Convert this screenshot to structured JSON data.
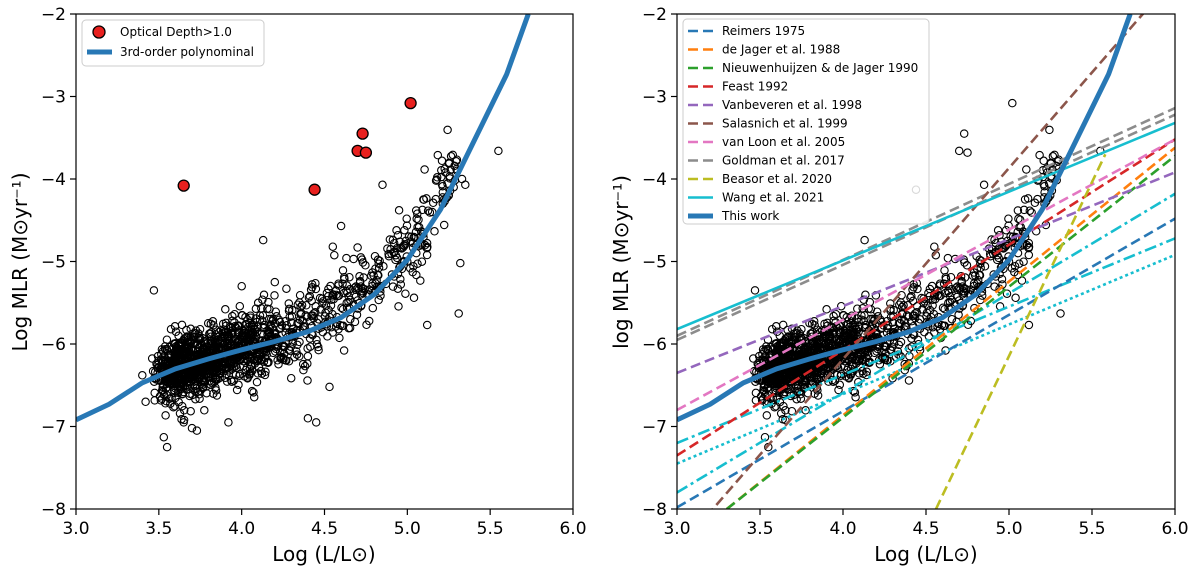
{
  "chart_data": [
    {
      "type": "scatter",
      "panel": "left",
      "xlabel": "Log (L/L⊙)",
      "ylabel": "Log MLR (M⊙yr⁻¹)",
      "xlim": [
        3.0,
        6.0
      ],
      "ylim": [
        -8,
        -2
      ],
      "xticks": [
        "3.0",
        "3.5",
        "4.0",
        "4.5",
        "5.0",
        "5.5",
        "6.0"
      ],
      "yticks": [
        "−2",
        "−3",
        "−4",
        "−5",
        "−6",
        "−7",
        "−8"
      ],
      "legend": [
        {
          "label": "Optical Depth>1.0",
          "color": "#e8201e",
          "kind": "marker"
        },
        {
          "label": "3rd-order polynominal",
          "color": "#2878b5",
          "kind": "line"
        }
      ],
      "legend_position": "upper-left",
      "optical_depth_points": [
        [
          3.65,
          -4.08
        ],
        [
          4.44,
          -4.13
        ],
        [
          4.7,
          -3.66
        ],
        [
          4.73,
          -3.45
        ],
        [
          4.75,
          -3.68
        ],
        [
          5.02,
          -3.08
        ]
      ],
      "outlier_points": [
        [
          3.4,
          -6.38
        ],
        [
          3.42,
          -6.7
        ],
        [
          3.47,
          -5.35
        ],
        [
          3.53,
          -7.13
        ],
        [
          3.55,
          -7.25
        ],
        [
          3.65,
          -6.95
        ],
        [
          3.7,
          -7.02
        ],
        [
          3.73,
          -7.05
        ],
        [
          3.92,
          -6.95
        ],
        [
          4.0,
          -5.3
        ],
        [
          4.1,
          -5.5
        ],
        [
          4.13,
          -4.74
        ],
        [
          4.2,
          -5.25
        ],
        [
          4.27,
          -5.33
        ],
        [
          4.4,
          -6.9
        ],
        [
          4.45,
          -6.95
        ],
        [
          4.48,
          -5.8
        ],
        [
          4.53,
          -6.52
        ],
        [
          4.55,
          -4.82
        ],
        [
          4.6,
          -4.57
        ],
        [
          4.7,
          -4.83
        ],
        [
          4.72,
          -4.95
        ],
        [
          4.85,
          -4.07
        ],
        [
          4.95,
          -4.38
        ],
        [
          5.06,
          -4.42
        ],
        [
          5.1,
          -4.25
        ],
        [
          5.12,
          -5.77
        ],
        [
          5.15,
          -4.4
        ],
        [
          5.18,
          -3.98
        ],
        [
          5.22,
          -4.25
        ],
        [
          5.25,
          -4.2
        ],
        [
          5.28,
          -4.1
        ],
        [
          5.3,
          -3.9
        ],
        [
          5.31,
          -5.63
        ],
        [
          5.32,
          -5.02
        ],
        [
          5.33,
          -4.0
        ],
        [
          5.35,
          -4.07
        ],
        [
          5.55,
          -3.66
        ]
      ],
      "cloud_description": "dense cloud of ~1500 sources between log L 3.4 and 5.3",
      "polynomial_curve": [
        [
          3.0,
          -6.92
        ],
        [
          3.2,
          -6.73
        ],
        [
          3.4,
          -6.47
        ],
        [
          3.6,
          -6.3
        ],
        [
          3.8,
          -6.18
        ],
        [
          4.0,
          -6.07
        ],
        [
          4.2,
          -5.97
        ],
        [
          4.4,
          -5.85
        ],
        [
          4.6,
          -5.68
        ],
        [
          4.8,
          -5.4
        ],
        [
          5.0,
          -4.98
        ],
        [
          5.2,
          -4.37
        ],
        [
          5.4,
          -3.55
        ],
        [
          5.6,
          -2.73
        ],
        [
          5.73,
          -2.0
        ]
      ]
    },
    {
      "type": "line",
      "panel": "right",
      "xlabel": "Log (L/L⊙)",
      "ylabel": "log MLR (M⊙yr⁻¹)",
      "xlim": [
        3.0,
        6.0
      ],
      "ylim": [
        -8,
        -2
      ],
      "xticks": [
        "3.0",
        "3.5",
        "4.0",
        "4.5",
        "5.0",
        "5.5",
        "6.0"
      ],
      "yticks": [
        "−2",
        "−3",
        "−4",
        "−5",
        "−6",
        "−7",
        "−8"
      ],
      "legend_position": "upper-left",
      "series": [
        {
          "name": "Reimers 1975",
          "color": "#2878b5",
          "style": "dashed",
          "x": [
            3.0,
            6.0
          ],
          "y": [
            -7.98,
            -4.48
          ]
        },
        {
          "name": "de Jager et al. 1988",
          "color": "#ff7f0e",
          "style": "dashed",
          "x": [
            3.3,
            6.0
          ],
          "y": [
            -8.0,
            -3.62
          ]
        },
        {
          "name": "Nieuwenhuijzen & de Jager 1990",
          "color": "#2ca02c",
          "style": "dashed",
          "x": [
            3.3,
            6.0
          ],
          "y": [
            -8.0,
            -3.72
          ]
        },
        {
          "name": "Feast 1992",
          "color": "#d62728",
          "style": "dashed",
          "x": [
            3.0,
            6.0
          ],
          "y": [
            -7.35,
            -3.52
          ]
        },
        {
          "name": "Vanbeveren et al. 1998",
          "color": "#9467bd",
          "style": "dashed",
          "x": [
            3.0,
            6.0
          ],
          "y": [
            -6.35,
            -3.92
          ]
        },
        {
          "name": "Salasnich et al. 1999",
          "color": "#8c564b",
          "style": "dashed",
          "x": [
            3.0,
            6.0
          ],
          "y": [
            -8.5,
            -1.55
          ]
        },
        {
          "name": "van Loon et al. 2005",
          "color": "#e377c2",
          "style": "dashed",
          "x": [
            3.0,
            6.0
          ],
          "y": [
            -6.8,
            -3.52
          ]
        },
        {
          "name": "Goldman et al. 2017",
          "color": "#8c8c8c",
          "style": "dashed",
          "x": [
            3.0,
            6.0
          ],
          "y": [
            -5.95,
            -3.22
          ]
        },
        {
          "name": "Beasor et al. 2020",
          "color": "#bcbd22",
          "style": "dashed",
          "x": [
            4.56,
            5.58
          ],
          "y": [
            -8.0,
            -3.7
          ]
        },
        {
          "name": "Wang et al. 2021",
          "color": "#17becf",
          "style": "solid",
          "x": [
            3.0,
            6.0
          ],
          "y": [
            -5.82,
            -3.32
          ]
        },
        {
          "name": "This work",
          "color": "#2878b5",
          "style": "thick",
          "x": [
            3.0,
            3.2,
            3.4,
            3.6,
            3.8,
            4.0,
            4.2,
            4.4,
            4.6,
            4.8,
            5.0,
            5.2,
            5.4,
            5.6,
            5.73
          ],
          "y": [
            -6.92,
            -6.73,
            -6.47,
            -6.3,
            -6.18,
            -6.07,
            -5.97,
            -5.85,
            -5.68,
            -5.4,
            -4.98,
            -4.37,
            -3.55,
            -2.73,
            -2.0
          ]
        }
      ],
      "extra_unlabeled_lines": [
        {
          "color": "#8c8c8c",
          "style": "dashed",
          "x": [
            3.0,
            6.0
          ],
          "y": [
            -5.9,
            -3.14
          ]
        },
        {
          "color": "#17becf",
          "style": "dashdot",
          "x": [
            3.0,
            6.0
          ],
          "y": [
            -7.8,
            -4.18
          ]
        },
        {
          "color": "#17becf",
          "style": "dotted",
          "x": [
            3.0,
            6.0
          ],
          "y": [
            -7.45,
            -4.92
          ]
        },
        {
          "color": "#17becf",
          "style": "dashdot",
          "x": [
            3.0,
            6.0
          ],
          "y": [
            -7.2,
            -4.72
          ]
        }
      ],
      "scatter_outliers": [
        [
          3.47,
          -5.35
        ],
        [
          3.53,
          -7.13
        ],
        [
          3.55,
          -7.25
        ],
        [
          4.44,
          -4.13
        ],
        [
          4.7,
          -3.66
        ],
        [
          4.73,
          -3.45
        ],
        [
          4.75,
          -3.68
        ],
        [
          5.02,
          -3.08
        ],
        [
          4.13,
          -4.74
        ],
        [
          4.55,
          -4.82
        ],
        [
          4.85,
          -4.07
        ],
        [
          5.12,
          -5.77
        ],
        [
          5.31,
          -5.63
        ],
        [
          5.55,
          -3.66
        ]
      ]
    }
  ]
}
